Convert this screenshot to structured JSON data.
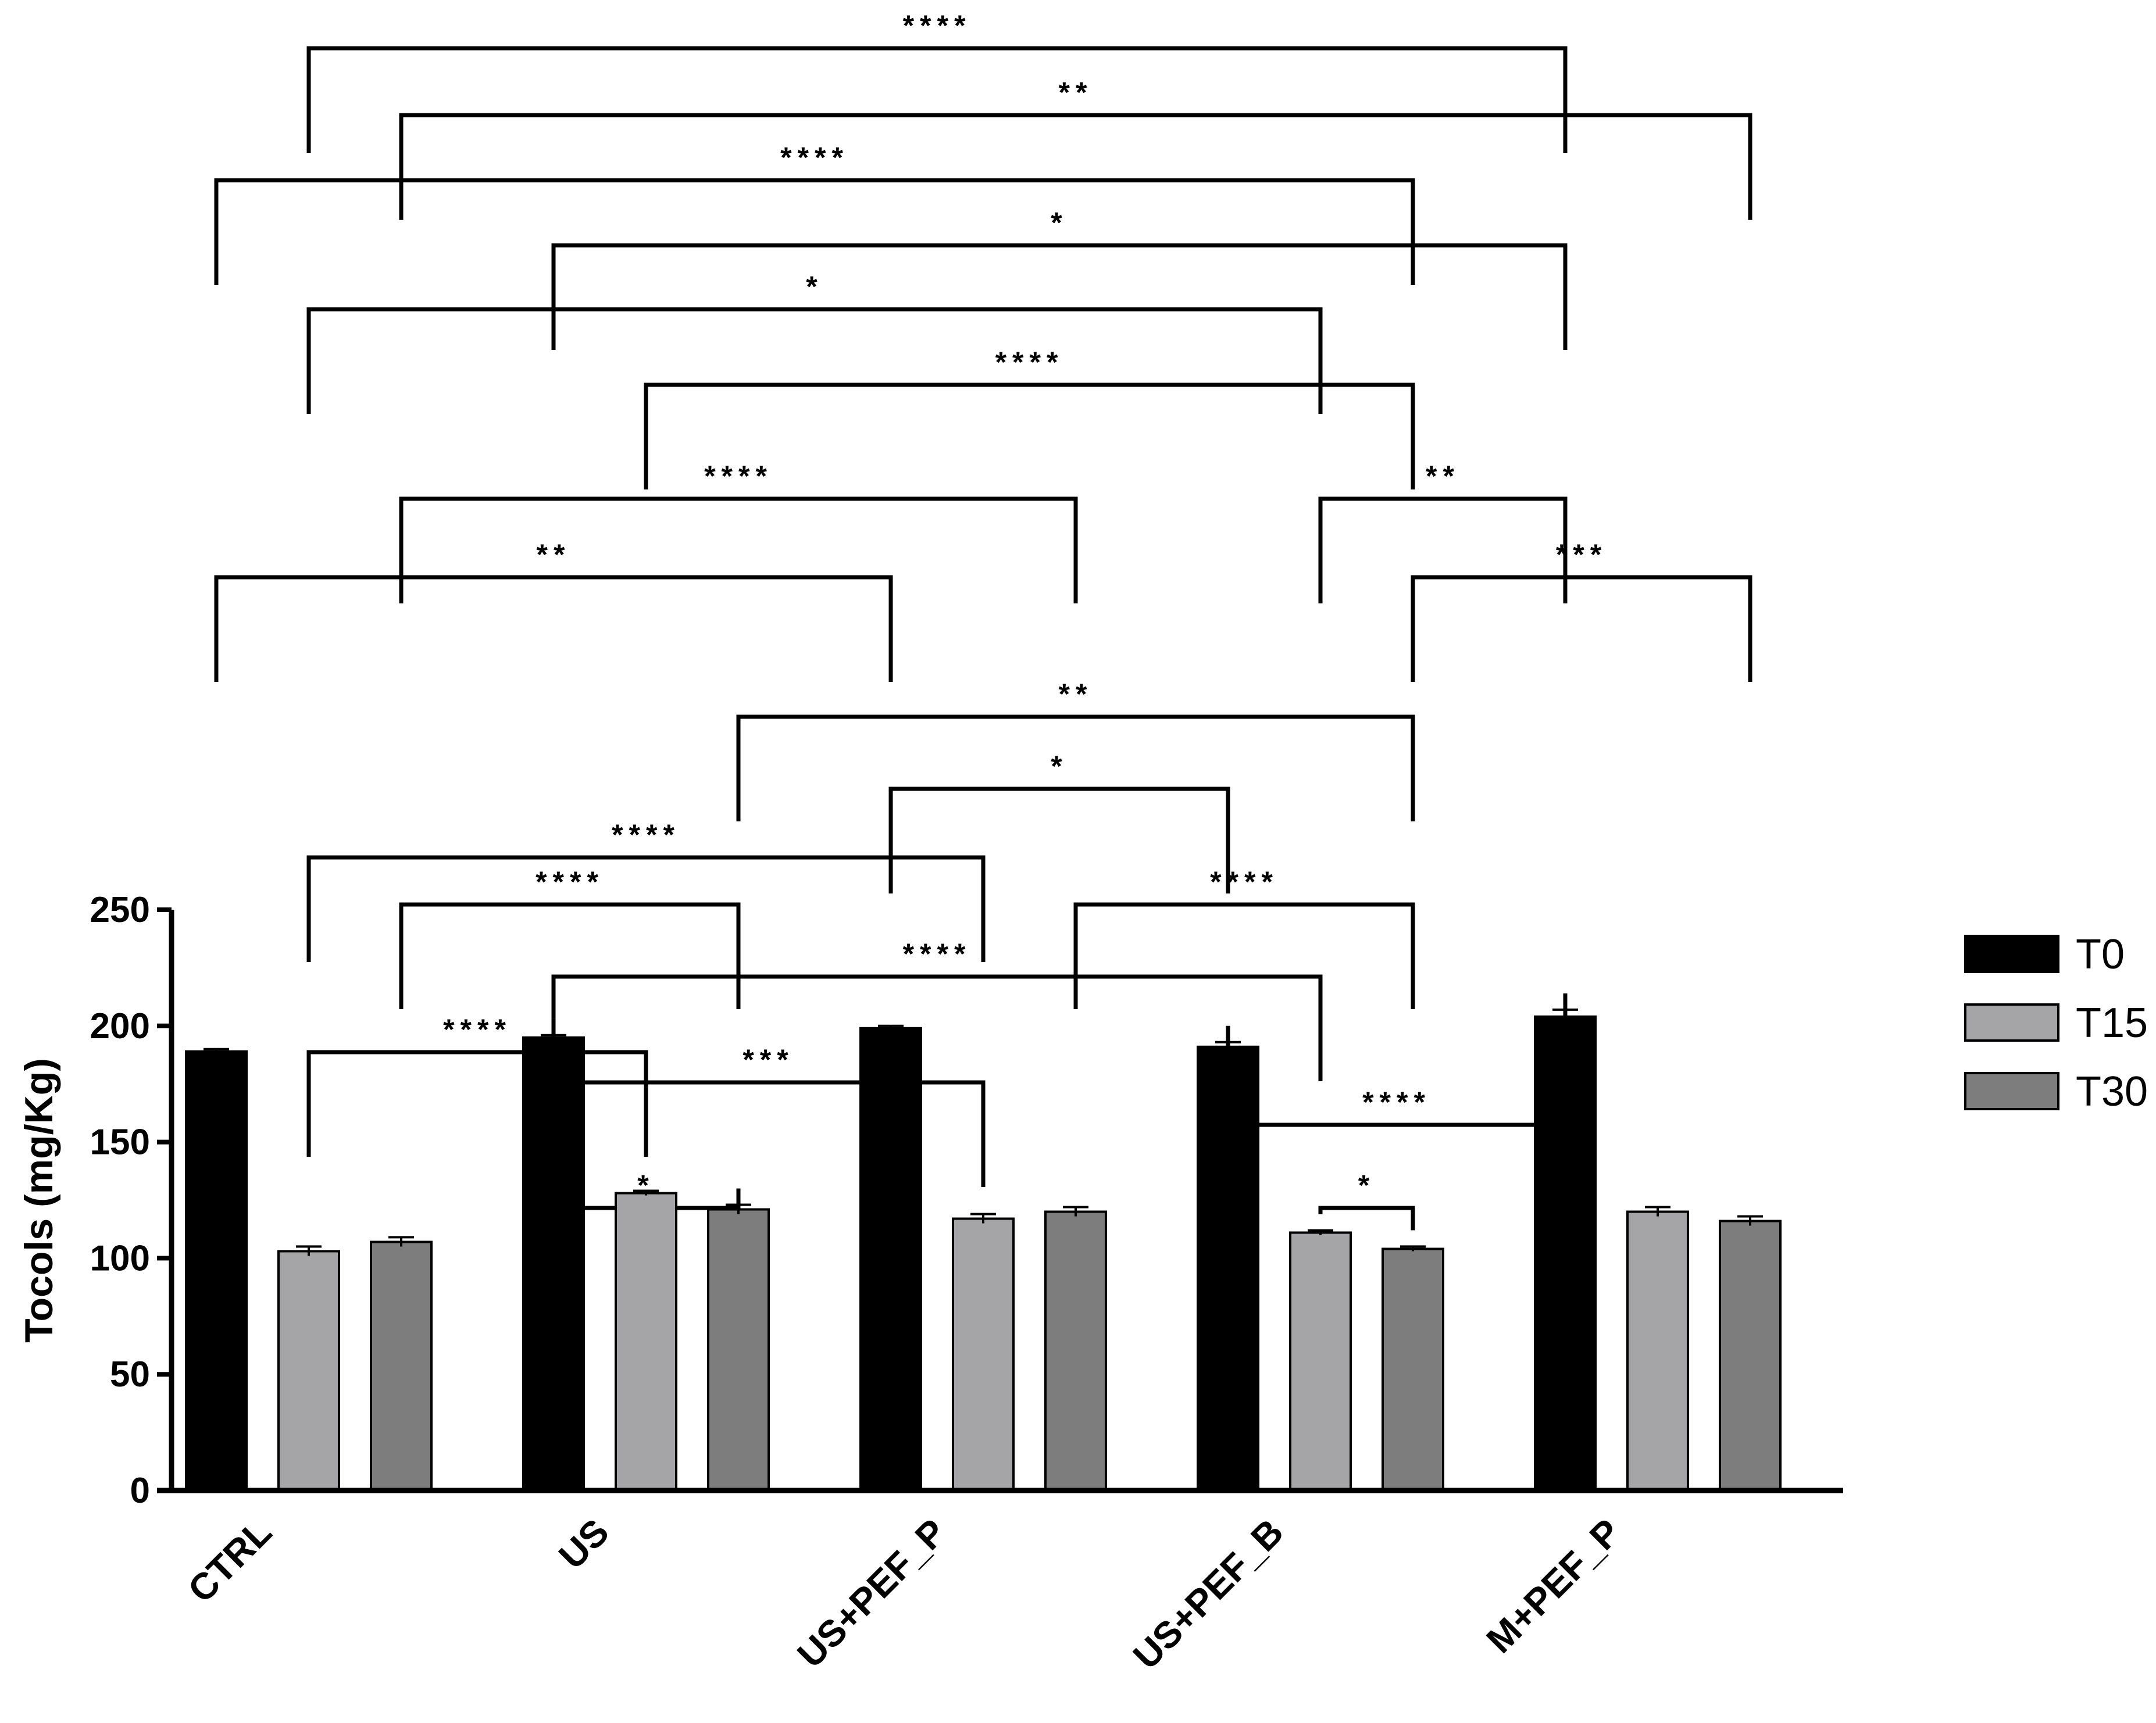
{
  "chart_data": {
    "type": "bar",
    "title": "",
    "xlabel": "",
    "ylabel": "Tocols (mg/Kg)",
    "ylim": [
      0,
      250
    ],
    "yticks": [
      0,
      50,
      100,
      150,
      200,
      250
    ],
    "categories": [
      "CTRL",
      "US",
      "US+PEF_P",
      "US+PEF_B",
      "M+PEF_P"
    ],
    "series": [
      {
        "name": "T0",
        "color": "#000000",
        "values": [
          189,
          195,
          199,
          191,
          204
        ],
        "errors": [
          1,
          1,
          1,
          2,
          3
        ]
      },
      {
        "name": "T15",
        "color": "#a5a5a8",
        "values": [
          103,
          128,
          117,
          111,
          120
        ],
        "errors": [
          2,
          1,
          2,
          1,
          2
        ]
      },
      {
        "name": "T30",
        "color": "#7d7d7d",
        "values": [
          107,
          121,
          120,
          104,
          116
        ],
        "errors": [
          2,
          2,
          2,
          1,
          2
        ]
      }
    ],
    "legend": {
      "position": "right",
      "entries": [
        "T0",
        "T15",
        "T30"
      ]
    },
    "grid": false,
    "comparisons": [
      {
        "label": "****",
        "from": [
          0,
          1
        ],
        "to": [
          4,
          0
        ]
      },
      {
        "label": "**",
        "from": [
          0,
          2
        ],
        "to": [
          4,
          2
        ]
      },
      {
        "label": "****",
        "from": [
          0,
          0
        ],
        "to": [
          3,
          2
        ]
      },
      {
        "label": "*",
        "from": [
          1,
          0
        ],
        "to": [
          4,
          0
        ]
      },
      {
        "label": "*",
        "from": [
          0,
          1
        ],
        "to": [
          3,
          1
        ]
      },
      {
        "label": "****",
        "from": [
          1,
          1
        ],
        "to": [
          3,
          2
        ]
      },
      {
        "label": "**",
        "from": [
          3,
          1
        ],
        "to": [
          4,
          0
        ]
      },
      {
        "label": "****",
        "from": [
          0,
          2
        ],
        "to": [
          2,
          2
        ]
      },
      {
        "label": "***",
        "from": [
          3,
          2
        ],
        "to": [
          4,
          2
        ]
      },
      {
        "label": "**",
        "from": [
          0,
          0
        ],
        "to": [
          2,
          0
        ]
      },
      {
        "label": "**",
        "from": [
          1,
          2
        ],
        "to": [
          3,
          2
        ]
      },
      {
        "label": "*",
        "from": [
          2,
          0
        ],
        "to": [
          3,
          0
        ]
      },
      {
        "label": "****",
        "from": [
          0,
          1
        ],
        "to": [
          2,
          1
        ]
      },
      {
        "label": "****",
        "from": [
          0,
          2
        ],
        "to": [
          1,
          2
        ]
      },
      {
        "label": "****",
        "from": [
          2,
          2
        ],
        "to": [
          3,
          2
        ]
      },
      {
        "label": "****",
        "from": [
          1,
          0
        ],
        "to": [
          3,
          1
        ]
      },
      {
        "label": "****",
        "from": [
          0,
          1
        ],
        "to": [
          1,
          1
        ]
      },
      {
        "label": "***",
        "from": [
          1,
          0
        ],
        "to": [
          2,
          1
        ]
      },
      {
        "label": "****",
        "from": [
          3,
          0
        ],
        "to": [
          4,
          0
        ]
      },
      {
        "label": "*",
        "from": [
          1,
          0
        ],
        "to": [
          1,
          2
        ]
      },
      {
        "label": "*",
        "from": [
          3,
          1
        ],
        "to": [
          3,
          2
        ]
      }
    ]
  }
}
